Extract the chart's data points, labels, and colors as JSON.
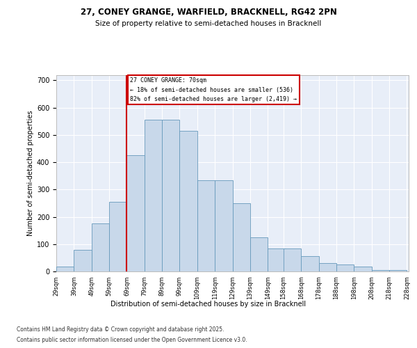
{
  "title_line1": "27, CONEY GRANGE, WARFIELD, BRACKNELL, RG42 2PN",
  "title_line2": "Size of property relative to semi-detached houses in Bracknell",
  "xlabel": "Distribution of semi-detached houses by size in Bracknell",
  "ylabel": "Number of semi-detached properties",
  "footer_line1": "Contains HM Land Registry data © Crown copyright and database right 2025.",
  "footer_line2": "Contains public sector information licensed under the Open Government Licence v3.0.",
  "annotation_title": "27 CONEY GRANGE: 70sqm",
  "annotation_line1": "← 18% of semi-detached houses are smaller (536)",
  "annotation_line2": "82% of semi-detached houses are larger (2,419) →",
  "vline_x": 69,
  "bar_color": "#c8d8ea",
  "bar_edge_color": "#6699bb",
  "vline_color": "#cc0000",
  "annotation_edge_color": "#cc0000",
  "background_color": "#e8eef8",
  "grid_color": "#ffffff",
  "bin_starts": [
    29,
    39,
    49,
    59,
    69,
    79,
    89,
    99,
    109,
    119,
    129,
    139,
    149,
    158,
    168,
    178,
    188,
    198,
    208,
    218,
    228
  ],
  "bin_labels": [
    "29sqm",
    "39sqm",
    "49sqm",
    "59sqm",
    "69sqm",
    "79sqm",
    "89sqm",
    "99sqm",
    "109sqm",
    "119sqm",
    "129sqm",
    "139sqm",
    "149sqm",
    "158sqm",
    "168sqm",
    "178sqm",
    "188sqm",
    "198sqm",
    "208sqm",
    "218sqm",
    "228sqm"
  ],
  "bar_heights": [
    18,
    80,
    175,
    255,
    425,
    555,
    555,
    515,
    335,
    335,
    250,
    125,
    85,
    85,
    55,
    30,
    25,
    18,
    5,
    5,
    0
  ],
  "ylim_max": 720,
  "yticks": [
    0,
    100,
    200,
    300,
    400,
    500,
    600,
    700
  ],
  "xlim_min": 29,
  "xlim_max": 229,
  "title1_fontsize": 8.5,
  "title2_fontsize": 7.5,
  "ylabel_fontsize": 7.0,
  "xlabel_fontsize": 7.0,
  "ytick_fontsize": 7.0,
  "xtick_fontsize": 6.0,
  "footer_fontsize": 5.5,
  "annot_fontsize": 6.0
}
